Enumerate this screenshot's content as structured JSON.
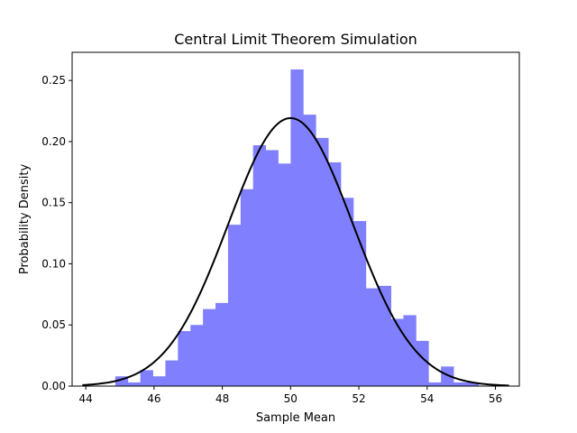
{
  "chart_data": {
    "type": "bar",
    "title": "Central Limit Theorem Simulation",
    "xlabel": "Sample Mean",
    "ylabel": "Probability Density",
    "xlim": [
      43.6,
      56.7
    ],
    "ylim": [
      0,
      0.273
    ],
    "xticks": [
      44,
      46,
      48,
      50,
      52,
      54,
      56
    ],
    "yticks": [
      0.0,
      0.05,
      0.1,
      0.15,
      0.2,
      0.25
    ],
    "ytick_labels": [
      "0.00",
      "0.05",
      "0.10",
      "0.15",
      "0.20",
      "0.25"
    ],
    "grid": false,
    "colors": {
      "bars": "#8080ff",
      "curve": "#000000",
      "axes": "#000000"
    },
    "series": [
      {
        "type": "histogram",
        "bin_start": 44.13,
        "bin_width": 0.367,
        "values": [
          0.0,
          0.0,
          0.008,
          0.003,
          0.013,
          0.008,
          0.021,
          0.045,
          0.05,
          0.063,
          0.068,
          0.132,
          0.161,
          0.197,
          0.193,
          0.182,
          0.259,
          0.222,
          0.203,
          0.183,
          0.154,
          0.135,
          0.08,
          0.082,
          0.055,
          0.058,
          0.037,
          0.003,
          0.016,
          0.003,
          0.003
        ]
      },
      {
        "type": "line",
        "distribution": "normal",
        "mean": 50.0,
        "std": 1.82,
        "x_range": [
          43.9,
          56.4
        ]
      }
    ]
  }
}
